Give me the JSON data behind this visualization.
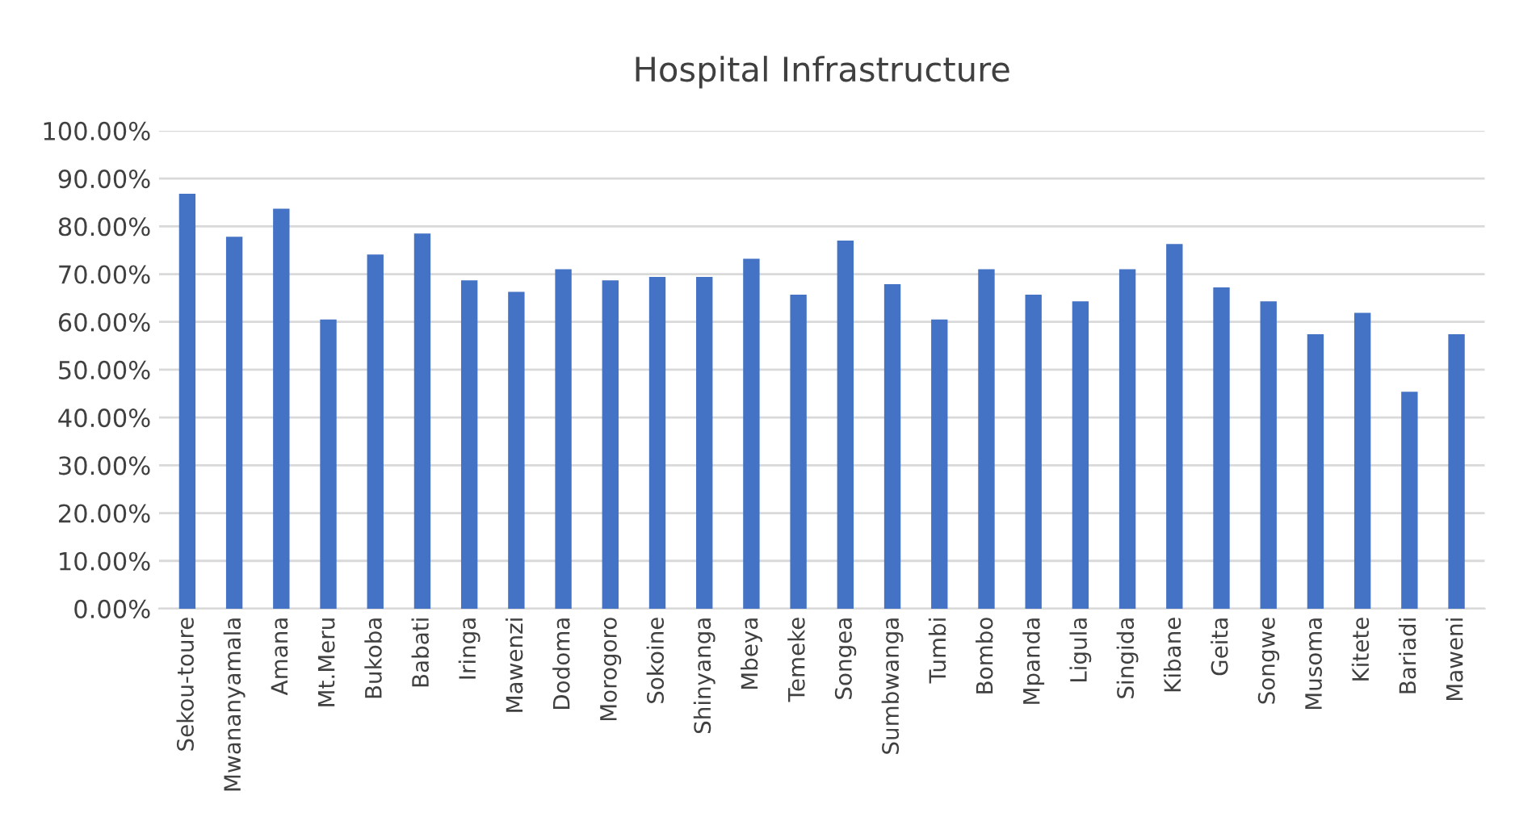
{
  "chart_data": {
    "type": "bar",
    "title": "Hospital Infrastructure",
    "categories": [
      "Sekou-toure",
      "Mwananyamala",
      "Amana",
      "Mt.Meru",
      "Bukoba",
      "Babati",
      "Iringa",
      "Mawenzi",
      "Dodoma",
      "Morogoro",
      "Sokoine",
      "Shinyanga",
      "Mbeya",
      "Temeke",
      "Songea",
      "Sumbwanga",
      "Tumbi",
      "Bombo",
      "Mpanda",
      "Ligula",
      "Singida",
      "Kibane",
      "Geita",
      "Songwe",
      "Musoma",
      "Kitete",
      "Bariadi",
      "Maweni"
    ],
    "values": [
      86.8,
      77.8,
      83.7,
      60.5,
      74.1,
      78.5,
      68.7,
      66.3,
      71.0,
      68.7,
      69.4,
      69.4,
      73.2,
      65.7,
      77.0,
      67.9,
      60.5,
      71.0,
      65.7,
      64.3,
      71.0,
      76.3,
      67.2,
      64.3,
      57.4,
      61.9,
      45.4,
      57.4
    ],
    "color": "#4472c4",
    "ylim": [
      0,
      100
    ],
    "yticks": [
      {
        "value": 0,
        "label": "0.00%"
      },
      {
        "value": 10,
        "label": "10.00%"
      },
      {
        "value": 20,
        "label": "20.00%"
      },
      {
        "value": 30,
        "label": "30.00%"
      },
      {
        "value": 40,
        "label": "40.00%"
      },
      {
        "value": 50,
        "label": "50.00%"
      },
      {
        "value": 60,
        "label": "60.00%"
      },
      {
        "value": 70,
        "label": "70.00%"
      },
      {
        "value": 80,
        "label": "80.00%"
      },
      {
        "value": 90,
        "label": "90.00%"
      },
      {
        "value": 100,
        "label": "100.00%"
      }
    ],
    "grid": "y"
  }
}
